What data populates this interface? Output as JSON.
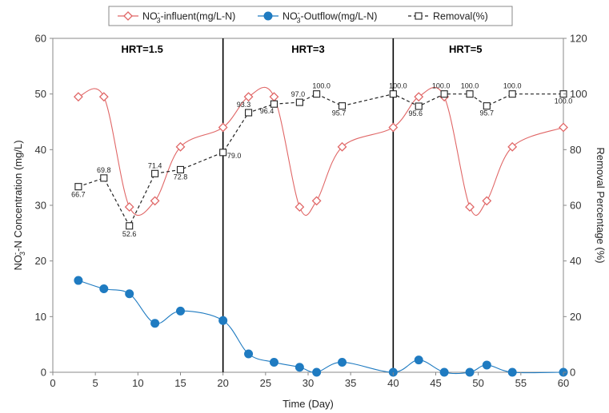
{
  "chart_data": {
    "type": "line",
    "title": "",
    "xlabel": "Time (Day)",
    "ylabel": "NO3--N Concentration (mg/L)",
    "ylabel_parts": {
      "pre": "NO",
      "sub": "3",
      "sup": "-",
      "post": "-N Concentration (mg/L)"
    },
    "y2label": "Removal Percentage (%)",
    "xlim": [
      0,
      60
    ],
    "ylim": [
      0,
      60
    ],
    "y2lim": [
      0,
      120
    ],
    "xticks": [
      "0",
      "5",
      "10",
      "15",
      "20",
      "25",
      "30",
      "35",
      "40",
      "45",
      "50",
      "55",
      "60"
    ],
    "yticks": [
      "0",
      "10",
      "20",
      "30",
      "40",
      "50",
      "60"
    ],
    "y2ticks": [
      "0",
      "20",
      "40",
      "60",
      "80",
      "100",
      "120"
    ],
    "grid": false,
    "legend_position": "top",
    "phase_dividers": [
      20,
      40
    ],
    "annotations": [
      {
        "text": "HRT=1.5",
        "x": 10.5,
        "y": 58
      },
      {
        "text": "HRT=3",
        "x": 30,
        "y": 58
      },
      {
        "text": "HRT=5",
        "x": 48.5,
        "y": 58
      }
    ],
    "series": [
      {
        "name": "NO3--influent(mg/L-N)",
        "legend_parts": {
          "pre": "NO",
          "sub": "3",
          "sup": "-",
          "post": "-influent(mg/L-N)"
        },
        "axis": "left",
        "color": "#e06666",
        "marker": "diamond-open",
        "line": "solid",
        "x": [
          3,
          6,
          9,
          12,
          15,
          20,
          23,
          26,
          29,
          31,
          34,
          40,
          43,
          46,
          49,
          51,
          54,
          60
        ],
        "y": [
          49.5,
          49.5,
          29.7,
          30.8,
          40.5,
          44,
          49.5,
          49.5,
          29.7,
          30.8,
          40.5,
          44,
          49.5,
          49.5,
          29.7,
          30.8,
          40.5,
          44
        ]
      },
      {
        "name": "NO3--Outflow(mg/L-N)",
        "legend_parts": {
          "pre": "NO",
          "sub": "3",
          "sup": "-",
          "post": "-Outflow(mg/L-N)"
        },
        "axis": "left",
        "color": "#1f7bc1",
        "marker": "circle-filled",
        "line": "solid",
        "x": [
          3,
          6,
          9,
          12,
          15,
          20,
          23,
          26,
          29,
          31,
          34,
          40,
          43,
          46,
          49,
          51,
          54,
          60
        ],
        "y": [
          16.5,
          15,
          14.1,
          8.8,
          11,
          9.3,
          3.3,
          1.8,
          0.9,
          0,
          1.8,
          0,
          2.2,
          0,
          0,
          1.3,
          0,
          0
        ]
      },
      {
        "name": "Removal(%)",
        "axis": "right",
        "color": "#222222",
        "marker": "square-open",
        "line": "dashed",
        "x": [
          3,
          6,
          9,
          12,
          15,
          20,
          23,
          26,
          29,
          31,
          34,
          40,
          43,
          46,
          49,
          51,
          54,
          60
        ],
        "y": [
          66.7,
          69.8,
          52.6,
          71.4,
          72.8,
          79.0,
          93.3,
          96.4,
          97.0,
          100.0,
          95.7,
          100.0,
          95.6,
          100.0,
          100.0,
          95.7,
          100.0,
          100.0
        ],
        "labels": [
          "66.7",
          "69.8",
          "52.6",
          "71.4",
          "72.8",
          "79.0",
          "93.3",
          "96.4",
          "97.0",
          "100.0",
          "95.7",
          "100.0",
          "95.6",
          "100.0",
          "100.0",
          "95.7",
          "100.0",
          "100.0"
        ]
      }
    ]
  }
}
